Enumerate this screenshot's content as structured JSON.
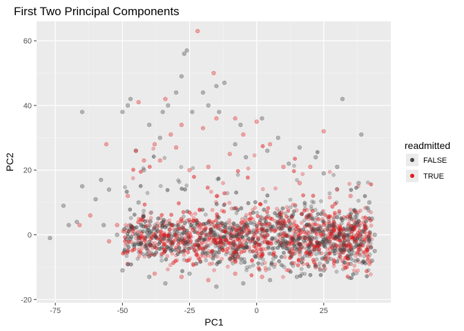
{
  "chart_data": {
    "type": "scatter",
    "title": "First Two Principal Components",
    "xlabel": "PC1",
    "ylabel": "PC2",
    "xlim": [
      -82,
      50
    ],
    "ylim": [
      -21,
      66
    ],
    "xticks": [
      -75,
      -50,
      -25,
      0,
      25
    ],
    "yticks": [
      -20,
      0,
      20,
      40,
      60
    ],
    "grid": true,
    "legend": {
      "title": "readmitted",
      "placement": "right",
      "entries": [
        {
          "label": "FALSE",
          "color": "#444444"
        },
        {
          "label": "TRUE",
          "color": "#e41a1c"
        }
      ]
    },
    "series": [
      {
        "name": "FALSE",
        "color": "#444444",
        "points": [
          [
            -77,
            -1
          ],
          [
            -72,
            9
          ],
          [
            -70,
            3
          ],
          [
            -67,
            4
          ],
          [
            -65,
            15
          ],
          [
            -65,
            38
          ],
          [
            -60,
            11
          ],
          [
            -58,
            17
          ],
          [
            -57,
            3
          ],
          [
            -55,
            14
          ],
          [
            -52,
            0
          ],
          [
            -50,
            -11
          ],
          [
            -50,
            38
          ],
          [
            -48,
            40
          ],
          [
            -47,
            42
          ],
          [
            -45,
            26
          ],
          [
            -44,
            10
          ],
          [
            -42,
            20
          ],
          [
            -40,
            34
          ],
          [
            -36,
            30
          ],
          [
            -35,
            38
          ],
          [
            -33,
            40
          ],
          [
            -30,
            44
          ],
          [
            -28,
            49
          ],
          [
            -27,
            56
          ],
          [
            -26,
            57
          ],
          [
            -24,
            38
          ],
          [
            -20,
            44
          ],
          [
            -18,
            40
          ],
          [
            -15,
            46
          ],
          [
            -14,
            38
          ],
          [
            -12,
            47
          ],
          [
            -8,
            28
          ],
          [
            -6,
            34
          ],
          [
            -4,
            24
          ],
          [
            2,
            36
          ],
          [
            4,
            26
          ],
          [
            8,
            30
          ],
          [
            12,
            22
          ],
          [
            16,
            27
          ],
          [
            22,
            24
          ],
          [
            25,
            19
          ],
          [
            30,
            21
          ],
          [
            32,
            42
          ],
          [
            38,
            16
          ],
          [
            39,
            31
          ],
          [
            42,
            10
          ],
          [
            43,
            5
          ],
          [
            44,
            0
          ],
          [
            44,
            -5
          ],
          [
            -40,
            -13
          ],
          [
            -34,
            -15
          ],
          [
            -25,
            -12
          ],
          [
            -15,
            -16
          ],
          [
            -5,
            -15
          ],
          [
            5,
            -14
          ],
          [
            15,
            -13
          ],
          [
            25,
            -11
          ],
          [
            35,
            -9
          ],
          [
            43,
            -8
          ]
        ]
      },
      {
        "name": "TRUE",
        "color": "#e41a1c",
        "points": [
          [
            -66,
            3
          ],
          [
            -62,
            6
          ],
          [
            -56,
            28
          ],
          [
            -55,
            -2
          ],
          [
            -52,
            3
          ],
          [
            -48,
            12
          ],
          [
            -45,
            26
          ],
          [
            -44,
            41
          ],
          [
            -42,
            23
          ],
          [
            -38,
            28
          ],
          [
            -36,
            23
          ],
          [
            -34,
            42
          ],
          [
            -32,
            31
          ],
          [
            -30,
            27
          ],
          [
            -28,
            34
          ],
          [
            -25,
            20
          ],
          [
            -22,
            63
          ],
          [
            -20,
            33
          ],
          [
            -18,
            21
          ],
          [
            -16,
            50
          ],
          [
            -15,
            36
          ],
          [
            -10,
            25
          ],
          [
            -8,
            36
          ],
          [
            -5,
            31
          ],
          [
            0,
            35
          ],
          [
            5,
            28
          ],
          [
            10,
            21
          ],
          [
            16,
            16
          ],
          [
            20,
            21
          ],
          [
            25,
            32
          ],
          [
            30,
            14
          ],
          [
            35,
            12
          ],
          [
            -48,
            -9
          ],
          [
            -38,
            -12
          ],
          [
            -28,
            -13
          ],
          [
            -18,
            -14
          ],
          [
            -8,
            -12
          ],
          [
            2,
            -13
          ],
          [
            12,
            -11
          ],
          [
            22,
            -10
          ],
          [
            32,
            -8
          ],
          [
            42,
            -9
          ]
        ]
      }
    ]
  }
}
